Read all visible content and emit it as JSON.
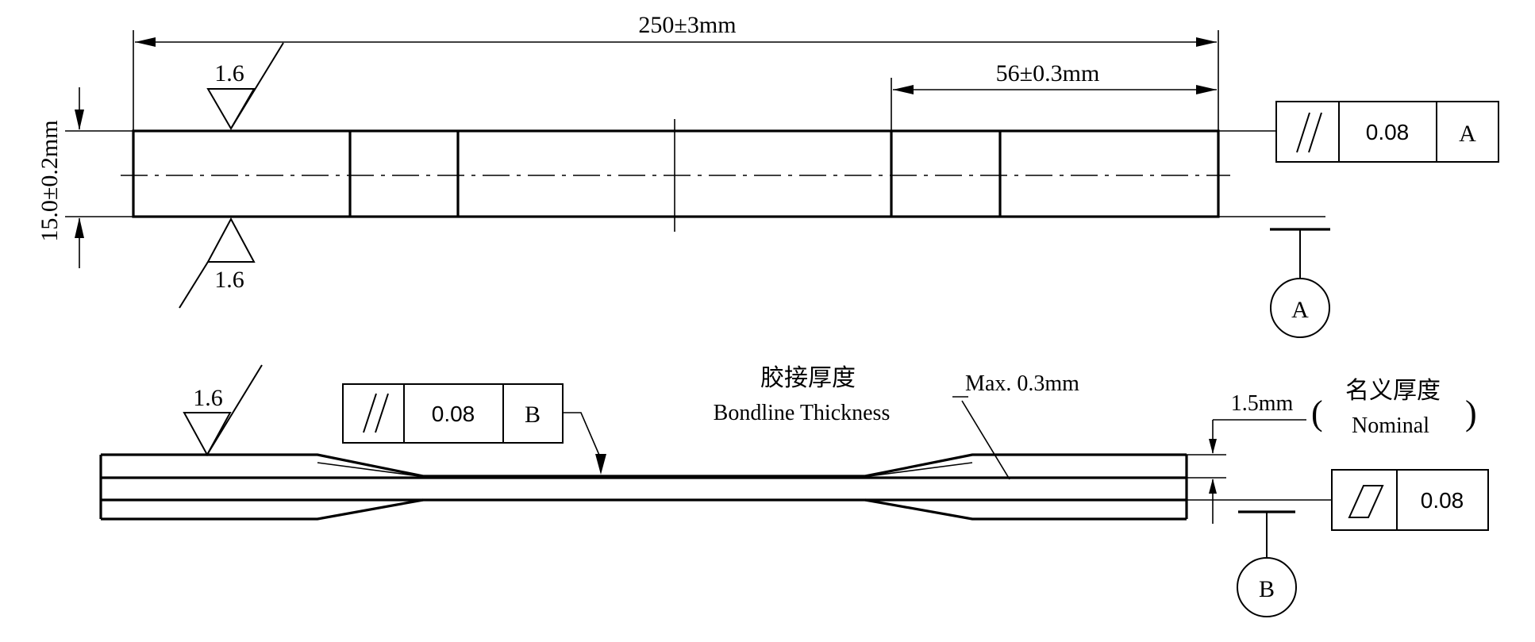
{
  "top_view": {
    "overall_length": "250±3mm",
    "grip_length": "56±0.3mm",
    "width": "15.0±0.2mm",
    "roughness_top": "1.6",
    "roughness_bottom": "1.6",
    "tolerance_frame": {
      "symbol": "//",
      "value": "0.08",
      "datum": "A"
    },
    "datum_label": "A"
  },
  "side_view": {
    "roughness": "1.6",
    "tolerance_frame": {
      "symbol": "//",
      "value": "0.08",
      "datum": "B"
    },
    "bondline_cn": "胶接厚度",
    "bondline_en": "Bondline Thickness",
    "bondline_max": "Max. 0.3mm",
    "nominal_thickness": "1.5mm",
    "nominal_cn": "名义厚度",
    "nominal_en": "Nominal",
    "flatness_frame": {
      "symbol": "flatness-parallelogram",
      "value": "0.08"
    },
    "datum_label": "B"
  }
}
